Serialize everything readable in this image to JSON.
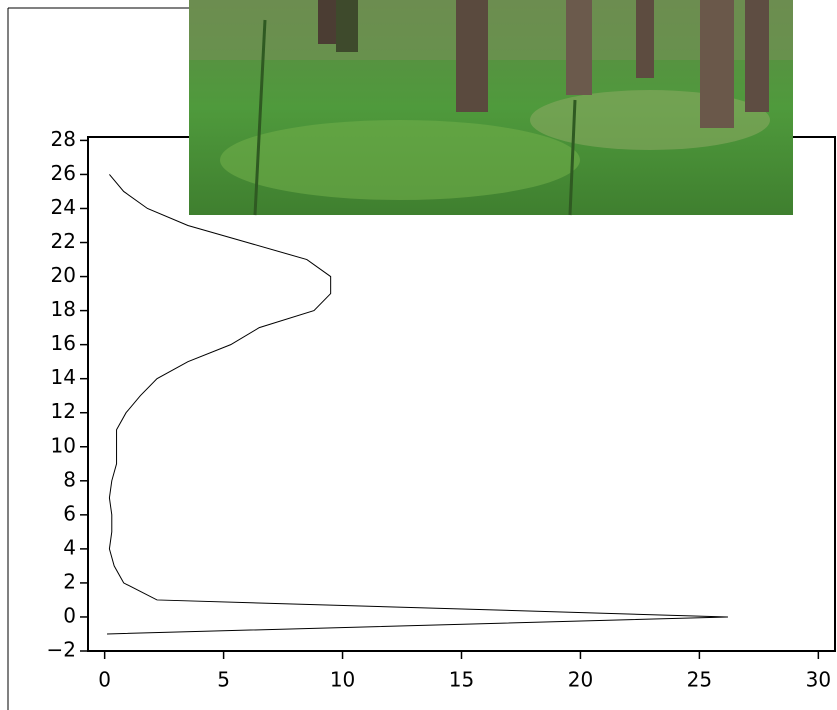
{
  "chart_data": {
    "type": "line",
    "x": [
      0.2,
      0.8,
      1.8,
      3.5,
      6,
      8.5,
      9.5,
      9.5,
      8.8,
      6.5,
      5.3,
      3.5,
      2.2,
      1.5,
      0.9,
      0.5,
      0.5,
      0.5,
      0.3,
      0.2,
      0.3,
      0.3,
      0.2,
      0.4,
      0.8,
      2.2,
      26.2,
      0.1
    ],
    "series": [
      {
        "color": "#000000",
        "values": [
          26,
          25,
          24,
          23,
          22,
          21,
          20,
          19,
          18,
          17,
          16,
          15,
          14,
          13,
          12,
          11,
          10,
          9,
          8,
          7,
          6,
          5,
          4,
          3,
          2,
          1,
          0,
          -1
        ]
      }
    ],
    "xlim": [
      -0.7,
      30.7
    ],
    "ylim": [
      -2,
      28.2
    ],
    "xticks": [
      0,
      5,
      10,
      15,
      20,
      25,
      30
    ],
    "yticks": [
      {
        "value": -2,
        "label": "−2"
      },
      0,
      2,
      4,
      6,
      8,
      10,
      12,
      14,
      16,
      18,
      20,
      22,
      24,
      26,
      28
    ]
  }
}
